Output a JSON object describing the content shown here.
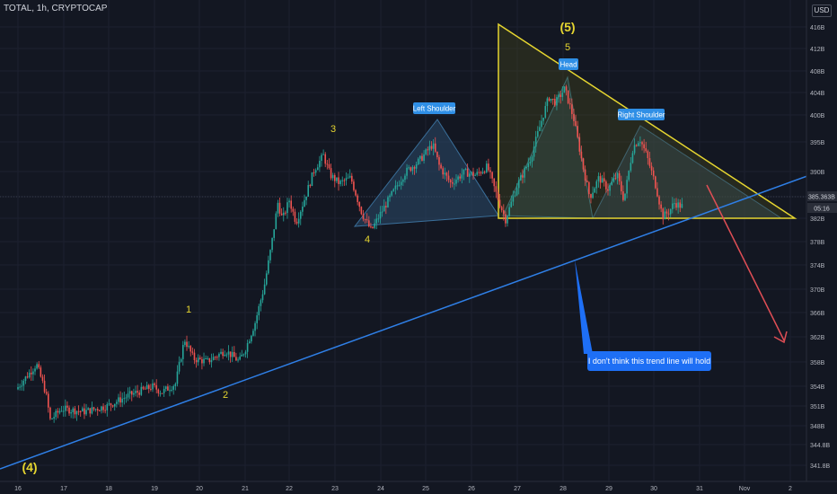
{
  "symbol_label": "TOTAL, 1h, CRYPTOCAP",
  "currency_button": "USD",
  "current_price": "385.363B",
  "countdown": "05:16",
  "colors": {
    "background": "#131722",
    "up": "#26a69a",
    "down": "#ef5350",
    "trendline": "#2f7fe6",
    "triangle": "#e6d630",
    "hs_fill": "#2b4a6a",
    "arrow": "#e04e55",
    "wave_label": "#e6d630"
  },
  "annotations": {
    "wave_1": "1",
    "wave_2": "2",
    "wave_3": "3",
    "wave_4": "4",
    "wave_5": "5",
    "wave_big_4": "(4)",
    "wave_big_5": "(5)",
    "left_shoulder": "Left Shoulder",
    "head": "Head",
    "right_shoulder": "Right Shoulder",
    "note": "I don't think this trend line will hold"
  },
  "chart_data": {
    "type": "candlestick",
    "x_ticks": [
      "16",
      "17",
      "18",
      "19",
      "20",
      "21",
      "22",
      "23",
      "24",
      "25",
      "26",
      "27",
      "28",
      "29",
      "30",
      "31",
      "Nov",
      "2"
    ],
    "y_ticks": [
      "416B",
      "412B",
      "408B",
      "404B",
      "400B",
      "395B",
      "390B",
      "386B",
      "382B",
      "378B",
      "374B",
      "370B",
      "366B",
      "362B",
      "358B",
      "354B",
      "351B",
      "348B",
      "344.8B",
      "341.8B"
    ],
    "price_path": [
      [
        16.0,
        352.5
      ],
      [
        16.3,
        355.5
      ],
      [
        16.45,
        357.0
      ],
      [
        16.65,
        352.0
      ],
      [
        16.75,
        347.0
      ],
      [
        17.0,
        349.0
      ],
      [
        17.5,
        348.5
      ],
      [
        18.0,
        349.5
      ],
      [
        18.5,
        351.5
      ],
      [
        19.0,
        353.0
      ],
      [
        19.2,
        352.0
      ],
      [
        19.5,
        353.5
      ],
      [
        19.7,
        361.5
      ],
      [
        19.9,
        358.0
      ],
      [
        20.2,
        357.5
      ],
      [
        20.6,
        359.5
      ],
      [
        20.9,
        357.5
      ],
      [
        21.05,
        360.0
      ],
      [
        21.25,
        364.5
      ],
      [
        21.45,
        371.0
      ],
      [
        21.6,
        378.0
      ],
      [
        21.75,
        386.0
      ],
      [
        21.85,
        383.0
      ],
      [
        22.0,
        386.5
      ],
      [
        22.15,
        382.5
      ],
      [
        22.35,
        387.0
      ],
      [
        22.55,
        392.0
      ],
      [
        22.75,
        394.5
      ],
      [
        22.9,
        391.0
      ],
      [
        23.1,
        389.5
      ],
      [
        23.35,
        390.5
      ],
      [
        23.6,
        384.0
      ],
      [
        23.8,
        381.0
      ],
      [
        24.0,
        384.0
      ],
      [
        24.25,
        387.5
      ],
      [
        24.55,
        391.5
      ],
      [
        24.85,
        393.5
      ],
      [
        25.15,
        396.5
      ],
      [
        25.3,
        392.5
      ],
      [
        25.55,
        389.5
      ],
      [
        25.85,
        391.5
      ],
      [
        26.1,
        391.0
      ],
      [
        26.35,
        392.5
      ],
      [
        26.55,
        387.5
      ],
      [
        26.75,
        383.0
      ],
      [
        27.0,
        389.0
      ],
      [
        27.3,
        394.0
      ],
      [
        27.55,
        401.0
      ],
      [
        27.7,
        405.0
      ],
      [
        27.85,
        404.0
      ],
      [
        28.05,
        406.5
      ],
      [
        28.25,
        401.0
      ],
      [
        28.45,
        392.5
      ],
      [
        28.6,
        387.0
      ],
      [
        28.8,
        390.5
      ],
      [
        29.0,
        388.5
      ],
      [
        29.2,
        391.0
      ],
      [
        29.35,
        386.5
      ],
      [
        29.55,
        396.0
      ],
      [
        29.7,
        397.5
      ],
      [
        29.85,
        394.5
      ],
      [
        30.05,
        389.0
      ],
      [
        30.2,
        383.5
      ],
      [
        30.35,
        384.5
      ],
      [
        30.45,
        386.0
      ],
      [
        30.6,
        385.4
      ]
    ]
  }
}
